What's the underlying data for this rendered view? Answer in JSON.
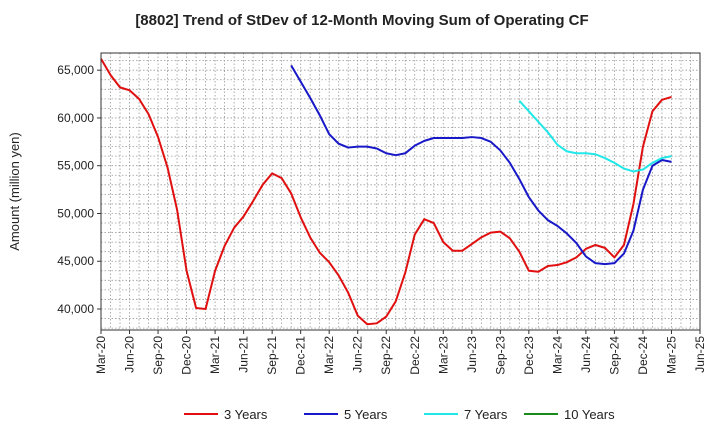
{
  "chart_data": {
    "type": "line",
    "title": "[8802]  Trend of StDev of 12-Month Moving Sum of Operating CF",
    "ylabel": "Amount (million yen)",
    "xlabel": "",
    "ylim": [
      37800,
      66800
    ],
    "yticks": [
      40000,
      45000,
      50000,
      55000,
      60000,
      65000
    ],
    "ytick_labels": [
      "40,000",
      "45,000",
      "50,000",
      "55,000",
      "60,000",
      "65,000"
    ],
    "xticks": [
      "Mar-20",
      "Jun-20",
      "Sep-20",
      "Dec-20",
      "Mar-21",
      "Jun-21",
      "Sep-21",
      "Dec-21",
      "Mar-22",
      "Jun-22",
      "Sep-22",
      "Dec-22",
      "Mar-23",
      "Jun-23",
      "Sep-23",
      "Dec-23",
      "Mar-24",
      "Jun-24",
      "Sep-24",
      "Dec-24",
      "Mar-25",
      "Jun-25"
    ],
    "x_start": "Mar-20",
    "x_end": "Jun-25",
    "grid": true,
    "legend_position": "bottom",
    "series": [
      {
        "name": "3 Years",
        "color": "#e01010",
        "start": "Mar-20",
        "values": [
          66200,
          64500,
          63200,
          62900,
          62000,
          60400,
          58000,
          54800,
          50400,
          44000,
          40100,
          40000,
          44000,
          46600,
          48500,
          49700,
          51300,
          53000,
          54200,
          53700,
          52100,
          49600,
          47500,
          45900,
          44900,
          43500,
          41700,
          39300,
          38400,
          38500,
          39200,
          40800,
          43800,
          47800,
          49400,
          49000,
          47000,
          46100,
          46100,
          46800,
          47500,
          48000,
          48100,
          47400,
          46000,
          44000,
          43900,
          44500,
          44600,
          44900,
          45400,
          46300,
          46700,
          46400,
          45400,
          46700,
          51000,
          57000,
          60700,
          61900,
          62200
        ]
      },
      {
        "name": "5 Years",
        "color": "#1818c8",
        "start": "Nov-21",
        "values": [
          65500,
          63800,
          62100,
          60300,
          58300,
          57300,
          56900,
          57000,
          57000,
          56800,
          56300,
          56100,
          56300,
          57100,
          57600,
          57900,
          57900,
          57900,
          57900,
          58000,
          57900,
          57500,
          56600,
          55300,
          53600,
          51700,
          50300,
          49300,
          48700,
          47900,
          46900,
          45500,
          44800,
          44700,
          44800,
          45800,
          48200,
          52500,
          55000,
          55600,
          55400
        ]
      },
      {
        "name": "7 Years",
        "color": "#20e8e8",
        "start": "Nov-23",
        "values": [
          61800,
          60700,
          59600,
          58500,
          57200,
          56500,
          56300,
          56300,
          56200,
          55800,
          55300,
          54700,
          54400,
          54600,
          55300,
          55800,
          56000
        ]
      },
      {
        "name": "10 Years",
        "color": "#1a8a1a",
        "start": "Nov-23",
        "values": []
      }
    ]
  }
}
